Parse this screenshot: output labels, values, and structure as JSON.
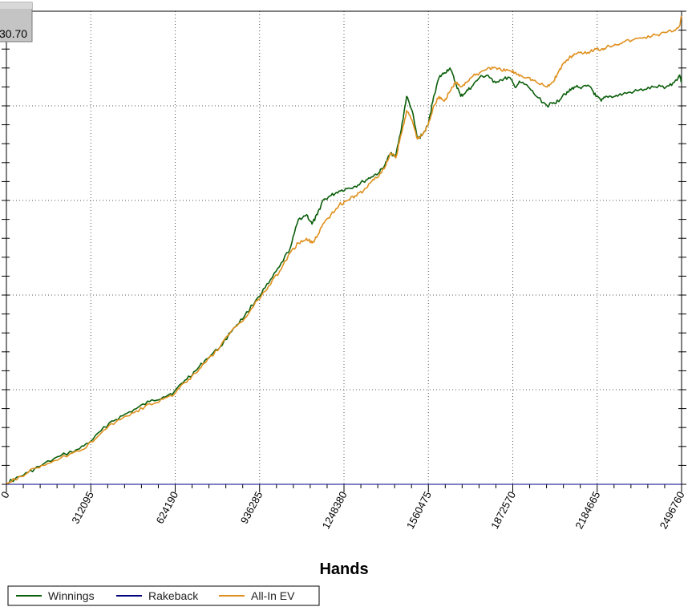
{
  "chart_data": {
    "type": "line",
    "title": "",
    "xlabel": "Hands",
    "ylabel": "",
    "value_box": "30.70",
    "xlim": [
      0,
      2496760
    ],
    "x_ticks": [
      "0",
      "312095",
      "624190",
      "936285",
      "1248380",
      "1560475",
      "1872570",
      "2184665",
      "2496760"
    ],
    "ylim": [
      0,
      100
    ],
    "grid": true,
    "legend_position": "bottom-left",
    "series": [
      {
        "name": "Winnings",
        "color": "#0b5e0b",
        "x": [
          0,
          30000,
          80000,
          130000,
          200000,
          270000,
          320000,
          380000,
          430000,
          480000,
          530000,
          580000,
          620000,
          660000,
          700000,
          740000,
          790000,
          840000,
          880000,
          930000,
          970000,
          1010000,
          1050000,
          1080000,
          1110000,
          1130000,
          1150000,
          1170000,
          1200000,
          1230000,
          1260000,
          1290000,
          1320000,
          1350000,
          1380000,
          1400000,
          1420000,
          1440000,
          1460000,
          1480000,
          1500000,
          1520000,
          1540000,
          1560000,
          1580000,
          1600000,
          1620000,
          1640000,
          1660000,
          1680000,
          1700000,
          1720000,
          1750000,
          1780000,
          1800000,
          1830000,
          1860000,
          1880000,
          1900000,
          1930000,
          1960000,
          2000000,
          2020000,
          2040000,
          2060000,
          2080000,
          2100000,
          2130000,
          2160000,
          2180000,
          2200000,
          2220000,
          2250000,
          2280000,
          2320000,
          2360000,
          2400000,
          2440000,
          2470000,
          2490000,
          2496760
        ],
        "y": [
          0.4,
          1,
          2.5,
          4,
          6,
          7.5,
          9.5,
          13,
          14.5,
          16,
          17.5,
          18.5,
          19.5,
          22,
          24,
          26.5,
          29,
          33,
          35.5,
          39.5,
          42.5,
          46,
          50,
          56,
          57,
          55,
          57,
          60,
          61,
          62,
          62.5,
          63,
          64,
          65,
          66,
          67.5,
          70,
          69.5,
          75,
          82,
          79,
          73,
          74,
          76,
          82,
          86,
          87,
          88,
          85,
          82,
          83,
          84,
          86,
          86.5,
          85,
          85.5,
          86,
          84,
          85,
          84,
          82,
          80,
          80.5,
          81,
          82.5,
          83,
          84,
          84,
          84,
          82,
          81,
          82,
          82,
          82.5,
          83,
          83.5,
          84,
          84,
          85,
          86.5,
          85
        ]
      },
      {
        "name": "Rakeback",
        "color": "#000080",
        "x": [
          0,
          2496760
        ],
        "y": [
          0,
          0
        ]
      },
      {
        "name": "All-In EV",
        "color": "#e0901e",
        "x": [
          0,
          30000,
          80000,
          130000,
          200000,
          270000,
          320000,
          380000,
          430000,
          480000,
          530000,
          580000,
          620000,
          660000,
          700000,
          740000,
          790000,
          840000,
          880000,
          930000,
          970000,
          1010000,
          1050000,
          1080000,
          1110000,
          1130000,
          1150000,
          1170000,
          1200000,
          1230000,
          1260000,
          1290000,
          1320000,
          1350000,
          1380000,
          1400000,
          1420000,
          1440000,
          1460000,
          1480000,
          1500000,
          1520000,
          1540000,
          1560000,
          1580000,
          1600000,
          1620000,
          1640000,
          1660000,
          1680000,
          1700000,
          1720000,
          1750000,
          1780000,
          1800000,
          1830000,
          1860000,
          1880000,
          1900000,
          1930000,
          1960000,
          2000000,
          2020000,
          2040000,
          2060000,
          2080000,
          2100000,
          2130000,
          2160000,
          2180000,
          2200000,
          2220000,
          2250000,
          2280000,
          2320000,
          2360000,
          2400000,
          2440000,
          2470000,
          2490000,
          2496760
        ],
        "y": [
          0.4,
          1,
          2.5,
          4,
          5.5,
          7,
          9,
          12.5,
          14,
          15.5,
          17,
          18,
          19,
          21.5,
          23.5,
          26,
          29,
          33,
          35,
          39,
          42,
          45,
          49,
          51,
          52,
          51,
          52.5,
          55,
          57,
          59,
          60,
          61,
          62,
          64,
          65.5,
          67,
          70,
          69,
          74,
          79,
          77,
          73,
          74,
          76,
          80,
          82,
          81,
          83,
          85,
          84,
          85,
          86,
          87,
          88,
          88,
          87.5,
          87.5,
          87,
          86.5,
          86,
          85,
          84,
          85,
          87,
          89,
          90,
          91,
          91,
          91.5,
          92,
          92,
          92.5,
          93,
          93.5,
          94,
          94.5,
          95,
          95.5,
          96,
          97,
          99
        ]
      }
    ]
  },
  "legend": {
    "items": [
      {
        "label": "Winnings",
        "color": "#0b5e0b"
      },
      {
        "label": "Rakeback",
        "color": "#000080"
      },
      {
        "label": "All-In EV",
        "color": "#e0901e"
      }
    ]
  }
}
